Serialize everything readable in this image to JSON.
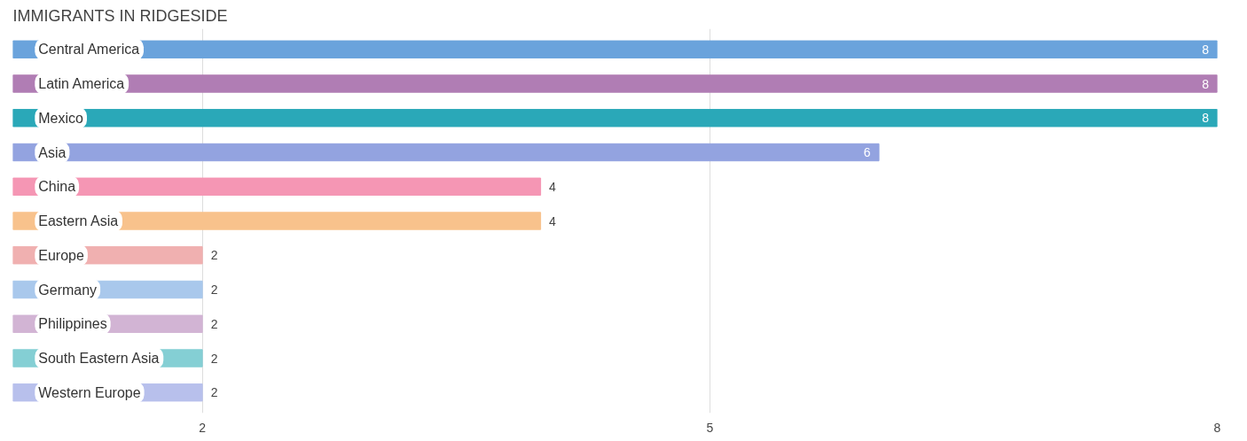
{
  "chart_data": {
    "type": "bar",
    "orientation": "horizontal",
    "title": "IMMIGRANTS IN RIDGESIDE",
    "categories": [
      "Central America",
      "Latin America",
      "Mexico",
      "Asia",
      "China",
      "Eastern Asia",
      "Europe",
      "Germany",
      "Philippines",
      "South Eastern Asia",
      "Western Europe"
    ],
    "values": [
      8,
      8,
      8,
      6,
      4,
      4,
      2,
      2,
      2,
      2,
      2
    ],
    "colors": [
      "#6aa3dc",
      "#b07db4",
      "#2aa8b8",
      "#93a3e0",
      "#f596b4",
      "#f8c28c",
      "#f0b0b0",
      "#a9c8ec",
      "#d2b4d4",
      "#84cfd4",
      "#b8c0ec"
    ],
    "xlim": [
      0.88,
      8
    ],
    "xticks": [
      2,
      5,
      8
    ],
    "grid": "x",
    "data_labels": true
  }
}
